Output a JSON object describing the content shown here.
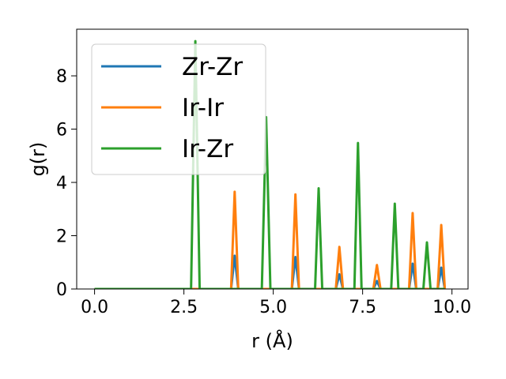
{
  "chart_data": {
    "type": "line",
    "title": "",
    "xlabel": "r (Å)",
    "ylabel": "g(r)",
    "xlim": [
      -0.5,
      10.45
    ],
    "ylim": [
      0,
      9.75
    ],
    "xticks": [
      "0.0",
      "2.5",
      "5.0",
      "7.5",
      "10.0"
    ],
    "yticks": [
      "0",
      "2",
      "4",
      "6",
      "8"
    ],
    "grid": false,
    "legend_position": "top-left",
    "series": [
      {
        "name": "Zr-Zr",
        "color": "#1f77b4",
        "points": [
          [
            0,
            0
          ],
          [
            3.82,
            0
          ],
          [
            3.92,
            1.25
          ],
          [
            4.02,
            0
          ],
          [
            5.52,
            0
          ],
          [
            5.62,
            1.2
          ],
          [
            5.72,
            0
          ],
          [
            6.75,
            0
          ],
          [
            6.85,
            0.55
          ],
          [
            6.95,
            0
          ],
          [
            7.8,
            0
          ],
          [
            7.9,
            0.3
          ],
          [
            8.0,
            0
          ],
          [
            8.8,
            0
          ],
          [
            8.9,
            0.95
          ],
          [
            9.0,
            0
          ],
          [
            9.6,
            0
          ],
          [
            9.7,
            0.8
          ],
          [
            9.8,
            0
          ]
        ]
      },
      {
        "name": "Ir-Ir",
        "color": "#ff7f0e",
        "points": [
          [
            0,
            0
          ],
          [
            3.82,
            0
          ],
          [
            3.92,
            3.65
          ],
          [
            4.02,
            0
          ],
          [
            5.52,
            0
          ],
          [
            5.62,
            3.55
          ],
          [
            5.72,
            0
          ],
          [
            6.75,
            0
          ],
          [
            6.85,
            1.58
          ],
          [
            6.95,
            0
          ],
          [
            7.8,
            0
          ],
          [
            7.9,
            0.9
          ],
          [
            8.0,
            0
          ],
          [
            8.8,
            0
          ],
          [
            8.9,
            2.85
          ],
          [
            9.0,
            0
          ],
          [
            9.6,
            0
          ],
          [
            9.7,
            2.4
          ],
          [
            9.8,
            0
          ]
        ]
      },
      {
        "name": "Ir-Zr",
        "color": "#2ca02c",
        "points": [
          [
            0,
            0
          ],
          [
            2.7,
            0
          ],
          [
            2.82,
            9.3
          ],
          [
            2.94,
            0
          ],
          [
            4.68,
            0
          ],
          [
            4.8,
            6.45
          ],
          [
            4.92,
            0
          ],
          [
            6.17,
            0
          ],
          [
            6.27,
            3.78
          ],
          [
            6.37,
            0
          ],
          [
            7.27,
            0
          ],
          [
            7.37,
            5.48
          ],
          [
            7.47,
            0
          ],
          [
            8.3,
            0
          ],
          [
            8.4,
            3.2
          ],
          [
            8.5,
            0
          ],
          [
            9.2,
            0
          ],
          [
            9.3,
            1.75
          ],
          [
            9.4,
            0
          ],
          [
            9.8,
            0
          ]
        ]
      }
    ]
  }
}
